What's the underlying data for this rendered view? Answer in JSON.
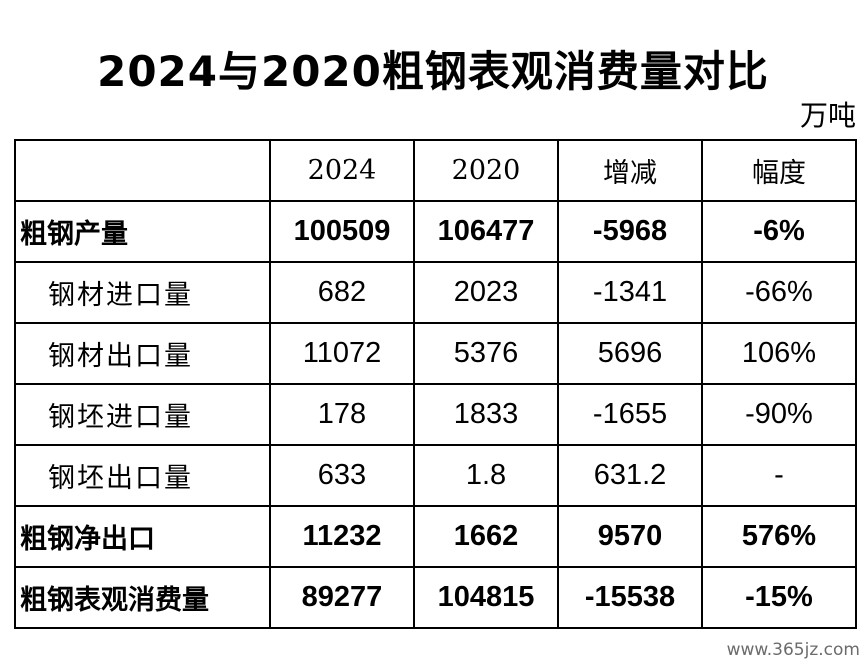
{
  "title": "2024与2020粗钢表观消费量对比",
  "unit": "万吨",
  "table": {
    "headers": [
      "",
      "2024",
      "2020",
      "增减",
      "幅度"
    ],
    "rows": [
      {
        "label": "粗钢产量",
        "v2024": "100509",
        "v2020": "106477",
        "change": "-5968",
        "pct": "-6%"
      },
      {
        "label": "钢材进口量",
        "v2024": "682",
        "v2020": "2023",
        "change": "-1341",
        "pct": "-66%"
      },
      {
        "label": "钢材出口量",
        "v2024": "11072",
        "v2020": "5376",
        "change": "5696",
        "pct": "106%"
      },
      {
        "label": "钢坯进口量",
        "v2024": "178",
        "v2020": "1833",
        "change": "-1655",
        "pct": "-90%"
      },
      {
        "label": "钢坯出口量",
        "v2024": "633",
        "v2020": "1.8",
        "change": "631.2",
        "pct": "-"
      },
      {
        "label": "粗钢净出口",
        "v2024": "11232",
        "v2020": "1662",
        "change": "9570",
        "pct": "576%"
      },
      {
        "label": "粗钢表观消费量",
        "v2024": "89277",
        "v2020": "104815",
        "change": "-15538",
        "pct": "-15%"
      }
    ]
  },
  "watermark": "www.365jz.com"
}
